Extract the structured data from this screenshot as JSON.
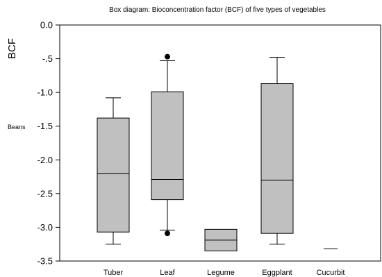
{
  "chart_data": {
    "type": "box",
    "title": "Box diagram: Bioconcentration factor (BCF) of five types of vegetables",
    "ylabel": "BCF",
    "side_label": "Beans",
    "ylim": [
      -3.5,
      0.0
    ],
    "yticks": [
      {
        "value": 0.0,
        "label": "0.0"
      },
      {
        "value": -0.5,
        "label": "-.5"
      },
      {
        "value": -1.0,
        "label": "-1.0"
      },
      {
        "value": -1.5,
        "label": "-1.5"
      },
      {
        "value": -2.0,
        "label": "-2.0"
      },
      {
        "value": -2.5,
        "label": "-2.5"
      },
      {
        "value": -3.0,
        "label": "-3.0"
      },
      {
        "value": -3.5,
        "label": "-3.5"
      }
    ],
    "grid": false,
    "box_color": "#c0c0c0",
    "categories": [
      "Tuber",
      "Leaf",
      "Legume",
      "Eggplant",
      "Cucurbit"
    ],
    "boxes": [
      {
        "name": "Tuber",
        "min": -3.25,
        "q1": -3.07,
        "median": -2.2,
        "q3": -1.38,
        "max": -1.08,
        "outliers": []
      },
      {
        "name": "Leaf",
        "min": -3.04,
        "q1": -2.59,
        "median": -2.29,
        "q3": -0.99,
        "max": -0.53,
        "outliers": [
          -0.47,
          -3.09
        ]
      },
      {
        "name": "Legume",
        "min": -3.35,
        "q1": -3.35,
        "median": -3.19,
        "q3": -3.03,
        "max": -3.03,
        "outliers": []
      },
      {
        "name": "Eggplant",
        "min": -3.25,
        "q1": -3.09,
        "median": -2.3,
        "q3": -0.87,
        "max": -0.48,
        "outliers": []
      },
      {
        "name": "Cucurbit",
        "min": -3.32,
        "q1": -3.32,
        "median": -3.32,
        "q3": -3.32,
        "max": -3.32,
        "outliers": []
      }
    ]
  }
}
